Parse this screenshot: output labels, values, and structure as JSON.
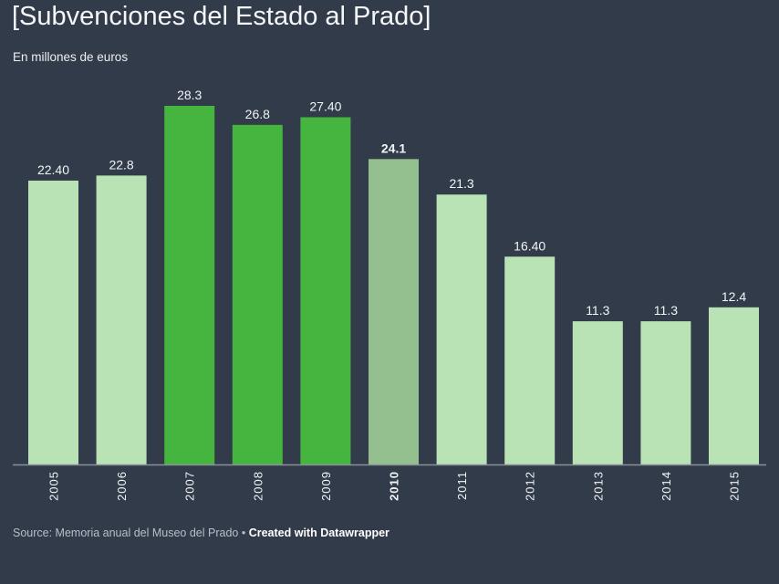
{
  "header": {
    "title": "[Subvenciones del Estado al Prado]",
    "subtitle": "En millones de euros"
  },
  "footer": {
    "source": "Source: Memoria anual del Museo del Prado",
    "separator": "•",
    "credit": "Created with Datawrapper"
  },
  "colors": {
    "background": "#323b4a",
    "bar_default": "#b9e3b5",
    "bar_highlight": "#46b53f",
    "bar_emphasis": "#94bf8e",
    "baseline": "#8a9099"
  },
  "chart_data": {
    "type": "bar",
    "title": "[Subvenciones del Estado al Prado]",
    "subtitle": "En millones de euros",
    "categories": [
      "2005",
      "2006",
      "2007",
      "2008",
      "2009",
      "2010",
      "2011",
      "2012",
      "2013",
      "2014",
      "2015"
    ],
    "values": [
      22.4,
      22.8,
      28.3,
      26.8,
      27.4,
      24.1,
      21.3,
      16.4,
      11.3,
      11.3,
      12.4
    ],
    "data_labels": [
      "22.40",
      "22.8",
      "28.3",
      "26.8",
      "27.40",
      "24.1",
      "21.3",
      "16.40",
      "11.3",
      "11.3",
      "12.4"
    ],
    "bar_styles": [
      "default",
      "default",
      "highlight",
      "highlight",
      "highlight",
      "emphasis",
      "default",
      "default",
      "default",
      "default",
      "default"
    ],
    "bold_categories": [
      "2010"
    ],
    "ylim": [
      0,
      28.3
    ],
    "grid": false,
    "xlabel": "",
    "ylabel": ""
  }
}
